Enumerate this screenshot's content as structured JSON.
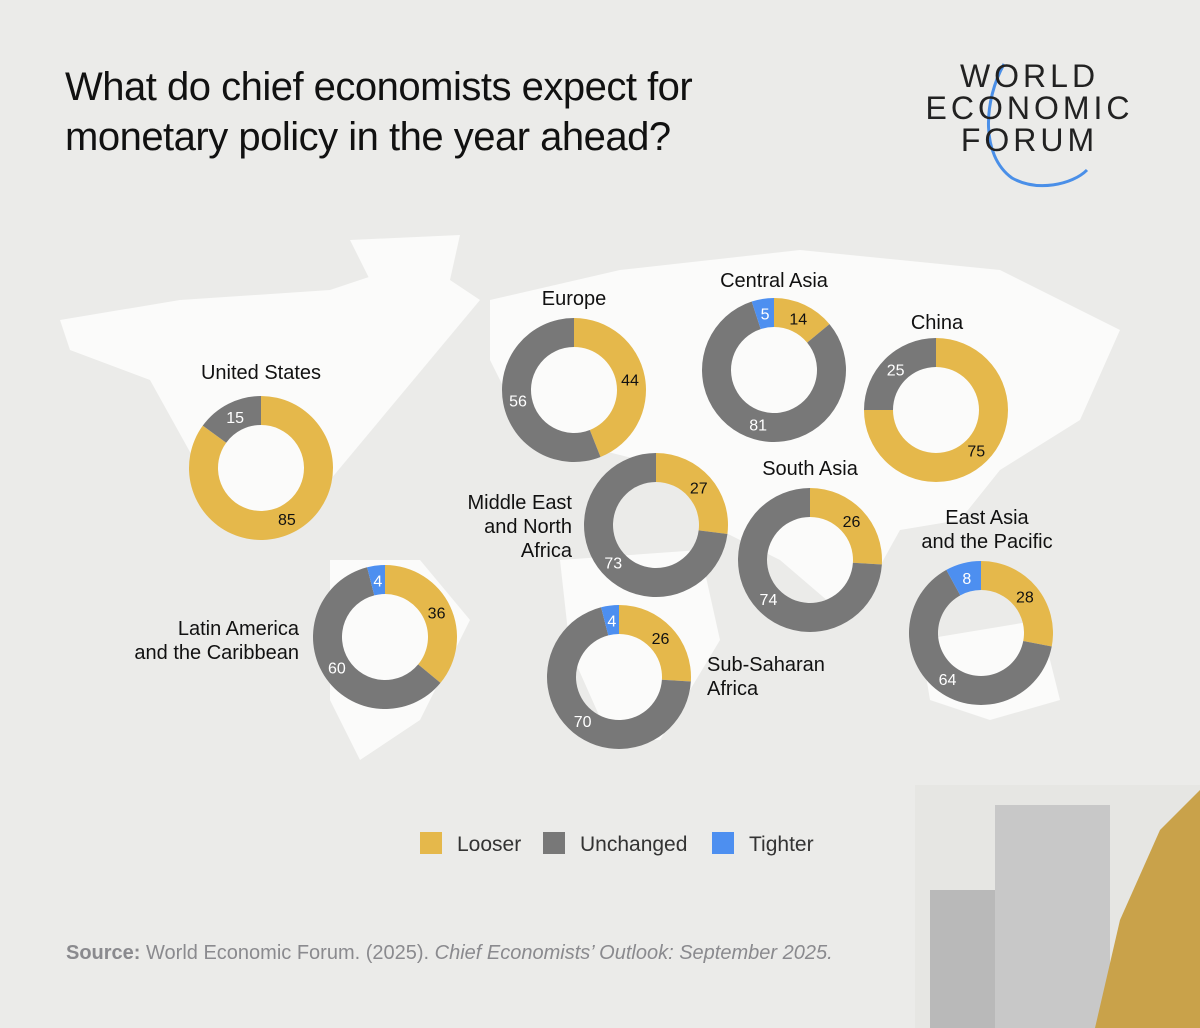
{
  "header": {
    "title_line1": "What do chief economists expect for",
    "title_line2": "monetary policy in the year ahead?"
  },
  "logo": {
    "lines": [
      "WORLD",
      "ECONOMIC",
      "FORUM"
    ],
    "accent": "#4a8fe8"
  },
  "colors": {
    "Looser": "#e5b84b",
    "Unchanged": "#787878",
    "Tighter": "#4d8ff0"
  },
  "chart_data": {
    "type": "donut",
    "series_order": [
      "Looser",
      "Unchanged",
      "Tighter"
    ],
    "regions": [
      {
        "name": [
          "United States"
        ],
        "Looser": 85,
        "Unchanged": 15,
        "Tighter": 0
      },
      {
        "name": [
          "Europe"
        ],
        "Looser": 44,
        "Unchanged": 56,
        "Tighter": 0
      },
      {
        "name": [
          "Central Asia"
        ],
        "Looser": 14,
        "Unchanged": 81,
        "Tighter": 5
      },
      {
        "name": [
          "China"
        ],
        "Looser": 75,
        "Unchanged": 25,
        "Tighter": 0
      },
      {
        "name": [
          "Middle East",
          "and North",
          "Africa"
        ],
        "Looser": 27,
        "Unchanged": 73,
        "Tighter": 0
      },
      {
        "name": [
          "South Asia"
        ],
        "Looser": 26,
        "Unchanged": 74,
        "Tighter": 0
      },
      {
        "name": [
          "Latin America",
          "and the Caribbean"
        ],
        "Looser": 36,
        "Unchanged": 60,
        "Tighter": 4
      },
      {
        "name": [
          "Sub-Saharan",
          "Africa"
        ],
        "Looser": 26,
        "Unchanged": 70,
        "Tighter": 4
      },
      {
        "name": [
          "East Asia",
          "and the Pacific"
        ],
        "Looser": 28,
        "Unchanged": 64,
        "Tighter": 8
      }
    ],
    "legend": [
      "Looser",
      "Unchanged",
      "Tighter"
    ],
    "legend_placement": "bottom-center"
  },
  "source": {
    "label": "Source:",
    "text": " World Economic Forum. (2025). ",
    "publication": "Chief Economists’ Outlook: September 2025."
  }
}
